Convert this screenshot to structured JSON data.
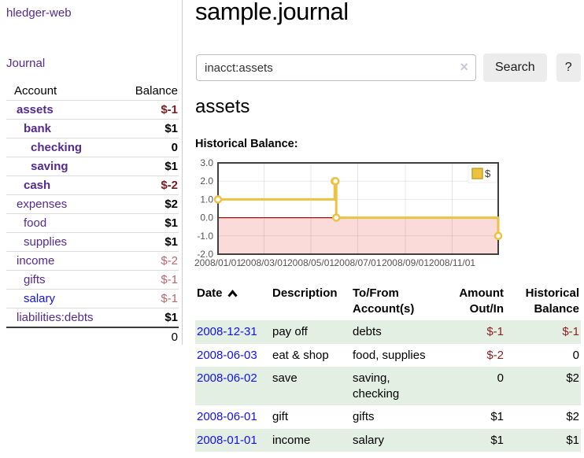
{
  "app": {
    "brand": "hledger-web"
  },
  "sidebar": {
    "journal_label": "Journal",
    "accounts": {
      "account_header": "Account",
      "balance_header": "Balance",
      "rows": [
        {
          "name": "assets",
          "indent": 0,
          "balance": "$-1",
          "in_filter": true,
          "balance_tone": "negative-strong",
          "link_tone": "purple"
        },
        {
          "name": "bank",
          "indent": 1,
          "balance": "$1",
          "in_filter": true,
          "balance_tone": "positive",
          "link_tone": "purple"
        },
        {
          "name": "checking",
          "indent": 2,
          "balance": "0",
          "in_filter": true,
          "balance_tone": "positive",
          "link_tone": "purple"
        },
        {
          "name": "saving",
          "indent": 2,
          "balance": "$1",
          "in_filter": true,
          "balance_tone": "positive",
          "link_tone": "purple"
        },
        {
          "name": "cash",
          "indent": 1,
          "balance": "$-2",
          "in_filter": true,
          "balance_tone": "negative-strong",
          "link_tone": "purple"
        },
        {
          "name": "expenses",
          "indent": 0,
          "balance": "$2",
          "in_filter": false,
          "balance_tone": "positive",
          "link_tone": "purple"
        },
        {
          "name": "food",
          "indent": 1,
          "balance": "$1",
          "in_filter": false,
          "balance_tone": "positive",
          "link_tone": "purple"
        },
        {
          "name": "supplies",
          "indent": 1,
          "balance": "$1",
          "in_filter": false,
          "balance_tone": "positive",
          "link_tone": "purple"
        },
        {
          "name": "income",
          "indent": 0,
          "balance": "$-2",
          "in_filter": false,
          "balance_tone": "negative-soft",
          "link_tone": "purple"
        },
        {
          "name": "gifts",
          "indent": 1,
          "balance": "$-1",
          "in_filter": false,
          "balance_tone": "negative-soft",
          "link_tone": "purple"
        },
        {
          "name": "salary",
          "indent": 1,
          "balance": "$-1",
          "in_filter": false,
          "balance_tone": "negative-soft",
          "link_tone": "blue"
        },
        {
          "name": "liabilities:debts",
          "indent": 0,
          "balance": "$1",
          "in_filter": false,
          "balance_tone": "positive",
          "link_tone": "purple"
        }
      ],
      "total": "0"
    }
  },
  "header": {
    "title": "sample.journal"
  },
  "search": {
    "query": "inacct:assets",
    "clear_icon": "×",
    "search_button": "Search",
    "help_button": "?"
  },
  "account_view": {
    "heading": "assets",
    "chart_title": "Historical Balance:"
  },
  "chart_data": {
    "type": "line",
    "style": "step",
    "title": "Historical Balance",
    "series": [
      {
        "name": "$",
        "color": "#edc240",
        "points": [
          [
            "2008-01-01",
            1.0
          ],
          [
            "2008-06-01",
            2.0
          ],
          [
            "2008-06-02",
            2.0
          ],
          [
            "2008-06-03",
            0.0
          ],
          [
            "2008-12-31",
            -1.0
          ]
        ]
      }
    ],
    "xlim": [
      "2008-01-01",
      "2008-12-31"
    ],
    "ylim": [
      -2.0,
      3.0
    ],
    "y_ticks": [
      3.0,
      2.0,
      1.0,
      0.0,
      -1.0,
      -2.0
    ],
    "x_ticks": [
      {
        "t": "2008-01-01",
        "label": "2008/01/01"
      },
      {
        "t": "2008-03-01",
        "label": "2008/03/01"
      },
      {
        "t": "2008-05-01",
        "label": "2008/05/01"
      },
      {
        "t": "2008-07-01",
        "label": "2008/07/01"
      },
      {
        "t": "2008-09-01",
        "label": "2008/09/01"
      },
      {
        "t": "2008-11-01",
        "label": "2008/11/01"
      }
    ],
    "legend": {
      "label": "$",
      "position": "top-right"
    },
    "grid": true,
    "colors": {
      "negative_region": "#fbdada",
      "zero_line": "#991111",
      "gridline": "rgba(0,0,0,0.09)",
      "border": "#404040",
      "point_fill": "#ffffff",
      "axis_label": "#545454"
    }
  },
  "register": {
    "columns": [
      {
        "label": "Date",
        "align": "left",
        "sort": "asc"
      },
      {
        "label": "Description",
        "align": "left"
      },
      {
        "label": "To/From Account(s)",
        "align": "left"
      },
      {
        "label": "Amount Out/In",
        "align": "right"
      },
      {
        "label": "Historical Balance",
        "align": "right"
      }
    ],
    "sort_icon": "chevron-up",
    "rows": [
      {
        "date": "2008-12-31",
        "description": "pay off",
        "accounts": "debts",
        "amount": "$-1",
        "amount_negative": true,
        "balance": "$-1",
        "balance_negative": true
      },
      {
        "date": "2008-06-03",
        "description": "eat & shop",
        "accounts": "food, supplies",
        "amount": "$-2",
        "amount_negative": true,
        "balance": "0",
        "balance_negative": false
      },
      {
        "date": "2008-06-02",
        "description": "save",
        "accounts": "saving, checking",
        "amount": "0",
        "amount_negative": false,
        "balance": "$2",
        "balance_negative": false
      },
      {
        "date": "2008-06-01",
        "description": "gift",
        "accounts": "gifts",
        "amount": "$1",
        "amount_negative": false,
        "balance": "$2",
        "balance_negative": false
      },
      {
        "date": "2008-01-01",
        "description": "income",
        "accounts": "salary",
        "amount": "$1",
        "amount_negative": false,
        "balance": "$1",
        "balance_negative": false
      }
    ]
  },
  "colors": {
    "link_purple": "#552a8f",
    "link_blue": "#1212ee",
    "negative_strong": "#7d1a1d",
    "negative_soft": "#b8696d",
    "negative_table": "#8b2222",
    "row_stripe_green": "#e2efe2",
    "accent_yellow": "#edc240",
    "sidebar_divider": "#cccccc"
  }
}
